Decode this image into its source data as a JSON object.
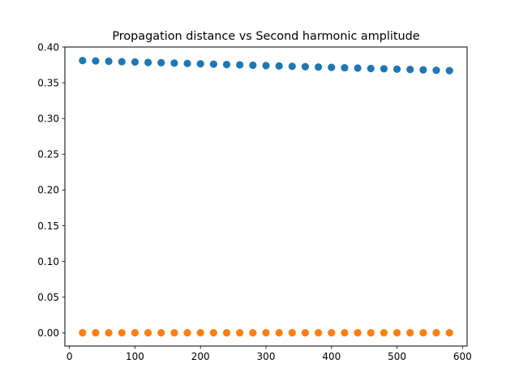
{
  "chart_data": {
    "type": "scatter",
    "title": "Propagation distance vs Second harmonic amplitude",
    "xlabel": "",
    "ylabel": "",
    "xlim": [
      -7,
      607
    ],
    "ylim": [
      -0.0183,
      0.4
    ],
    "xticks": [
      0,
      100,
      200,
      300,
      400,
      500,
      600
    ],
    "xtick_labels": [
      "0",
      "100",
      "200",
      "300",
      "400",
      "500",
      "600"
    ],
    "yticks": [
      0.0,
      0.05,
      0.1,
      0.15,
      0.2,
      0.25,
      0.3,
      0.35,
      0.4
    ],
    "ytick_labels": [
      "0.00",
      "0.05",
      "0.10",
      "0.15",
      "0.20",
      "0.25",
      "0.30",
      "0.35",
      "0.40"
    ],
    "grid": false,
    "legend": false,
    "x": [
      20,
      40,
      60,
      80,
      100,
      120,
      140,
      160,
      180,
      200,
      220,
      240,
      260,
      280,
      300,
      320,
      340,
      360,
      380,
      400,
      420,
      440,
      460,
      480,
      500,
      520,
      540,
      560,
      580
    ],
    "series": [
      {
        "color": "#1f77b4",
        "values": [
          0.381,
          0.3805,
          0.38,
          0.3795,
          0.379,
          0.3785,
          0.378,
          0.3775,
          0.377,
          0.3765,
          0.376,
          0.3755,
          0.375,
          0.3745,
          0.374,
          0.3735,
          0.373,
          0.3725,
          0.372,
          0.3715,
          0.371,
          0.3705,
          0.37,
          0.3695,
          0.369,
          0.3685,
          0.368,
          0.3675,
          0.367
        ]
      },
      {
        "color": "#ff7f0e",
        "values": [
          0.0003,
          0.0003,
          0.0003,
          0.0003,
          0.0003,
          0.0003,
          0.0003,
          0.0003,
          0.0003,
          0.0003,
          0.0003,
          0.0003,
          0.0003,
          0.0003,
          0.0003,
          0.0003,
          0.0003,
          0.0003,
          0.0003,
          0.0003,
          0.0003,
          0.0003,
          0.0003,
          0.0003,
          0.0003,
          0.0003,
          0.0003,
          0.0003,
          0.0003
        ]
      }
    ]
  }
}
